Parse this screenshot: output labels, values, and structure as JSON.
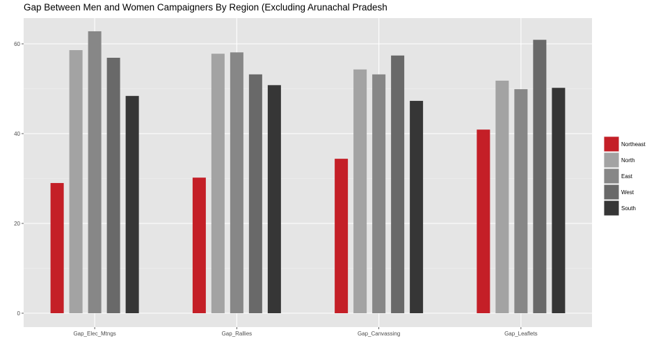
{
  "chart_data": {
    "type": "bar",
    "title": "Gap Between Men and Women Campaigners By Region (Excluding Arunachal Pradesh",
    "xlabel": "",
    "ylabel": "",
    "categories": [
      "Gap_Elec_Mtngs",
      "Gap_Rallies",
      "Gap_Canvassing",
      "Gap_Leaflets"
    ],
    "series": [
      {
        "name": "Northeast",
        "color": "#c41f27",
        "values": [
          29.0,
          30.2,
          34.4,
          40.9
        ]
      },
      {
        "name": "North",
        "color": "#a3a3a3",
        "values": [
          58.6,
          57.8,
          54.3,
          51.8
        ]
      },
      {
        "name": "East",
        "color": "#878787",
        "values": [
          62.8,
          58.1,
          53.2,
          49.9
        ]
      },
      {
        "name": "West",
        "color": "#696969",
        "values": [
          56.9,
          53.2,
          57.4,
          60.9
        ]
      },
      {
        "name": "South",
        "color": "#363636",
        "values": [
          48.4,
          50.8,
          47.3,
          50.2
        ]
      }
    ],
    "ylim": [
      -3,
      65
    ],
    "yticks": [
      0,
      20,
      40,
      60
    ],
    "grid": true,
    "legend": "right",
    "panel_background": "#e5e5e5"
  }
}
